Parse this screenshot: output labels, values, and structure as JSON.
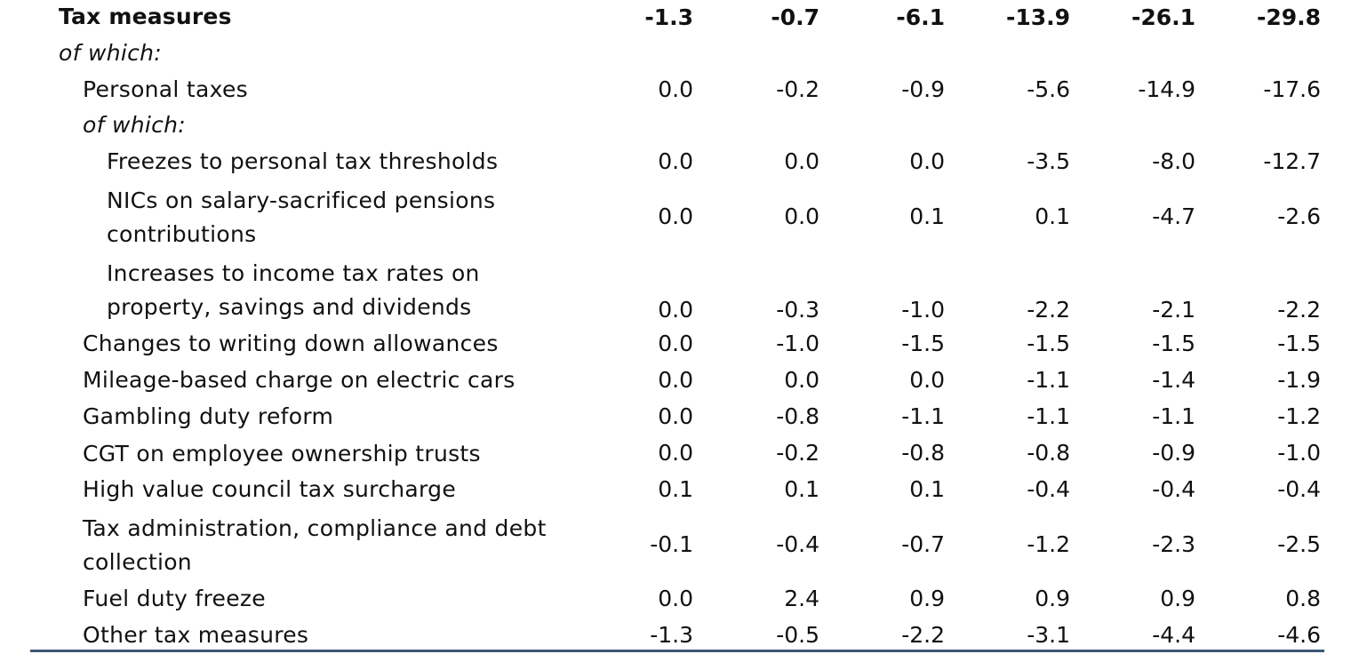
{
  "rows": [
    {
      "label": "Tax measures",
      "values": [
        "-1.3",
        "-0.7",
        "-6.1",
        "-13.9",
        "-26.1",
        "-29.8"
      ]
    },
    {
      "label": "of which:"
    },
    {
      "label": "Personal taxes",
      "values": [
        "0.0",
        "-0.2",
        "-0.9",
        "-5.6",
        "-14.9",
        "-17.6"
      ]
    },
    {
      "label": "of which:"
    },
    {
      "label": "Freezes to personal tax thresholds",
      "values": [
        "0.0",
        "0.0",
        "0.0",
        "-3.5",
        "-8.0",
        "-12.7"
      ]
    },
    {
      "label_lines": [
        "NICs on salary-sacrificed pensions",
        "contributions"
      ],
      "values": [
        "0.0",
        "0.0",
        "0.1",
        "0.1",
        "-4.7",
        "-2.6"
      ]
    },
    {
      "label_lines": [
        "Increases to income tax rates on",
        "property, savings and dividends"
      ],
      "values": [
        "0.0",
        "-0.3",
        "-1.0",
        "-2.2",
        "-2.1",
        "-2.2"
      ]
    },
    {
      "label": "Changes to writing down allowances",
      "values": [
        "0.0",
        "-1.0",
        "-1.5",
        "-1.5",
        "-1.5",
        "-1.5"
      ]
    },
    {
      "label": "Mileage-based charge on electric cars",
      "values": [
        "0.0",
        "0.0",
        "0.0",
        "-1.1",
        "-1.4",
        "-1.9"
      ]
    },
    {
      "label": "Gambling duty reform",
      "values": [
        "0.0",
        "-0.8",
        "-1.1",
        "-1.1",
        "-1.1",
        "-1.2"
      ]
    },
    {
      "label": "CGT on employee ownership trusts",
      "values": [
        "0.0",
        "-0.2",
        "-0.8",
        "-0.8",
        "-0.9",
        "-1.0"
      ]
    },
    {
      "label": "High value council tax surcharge",
      "values": [
        "0.1",
        "0.1",
        "0.1",
        "-0.4",
        "-0.4",
        "-0.4"
      ]
    },
    {
      "label_lines": [
        "Tax administration, compliance and debt",
        "collection"
      ],
      "values": [
        "-0.1",
        "-0.4",
        "-0.7",
        "-1.2",
        "-2.3",
        "-2.5"
      ]
    },
    {
      "label": "Fuel duty freeze",
      "values": [
        "0.0",
        "2.4",
        "0.9",
        "0.9",
        "0.9",
        "0.8"
      ]
    },
    {
      "label": "Other tax measures",
      "values": [
        "-1.3",
        "-0.5",
        "-2.2",
        "-3.1",
        "-4.4",
        "-4.6"
      ]
    }
  ]
}
